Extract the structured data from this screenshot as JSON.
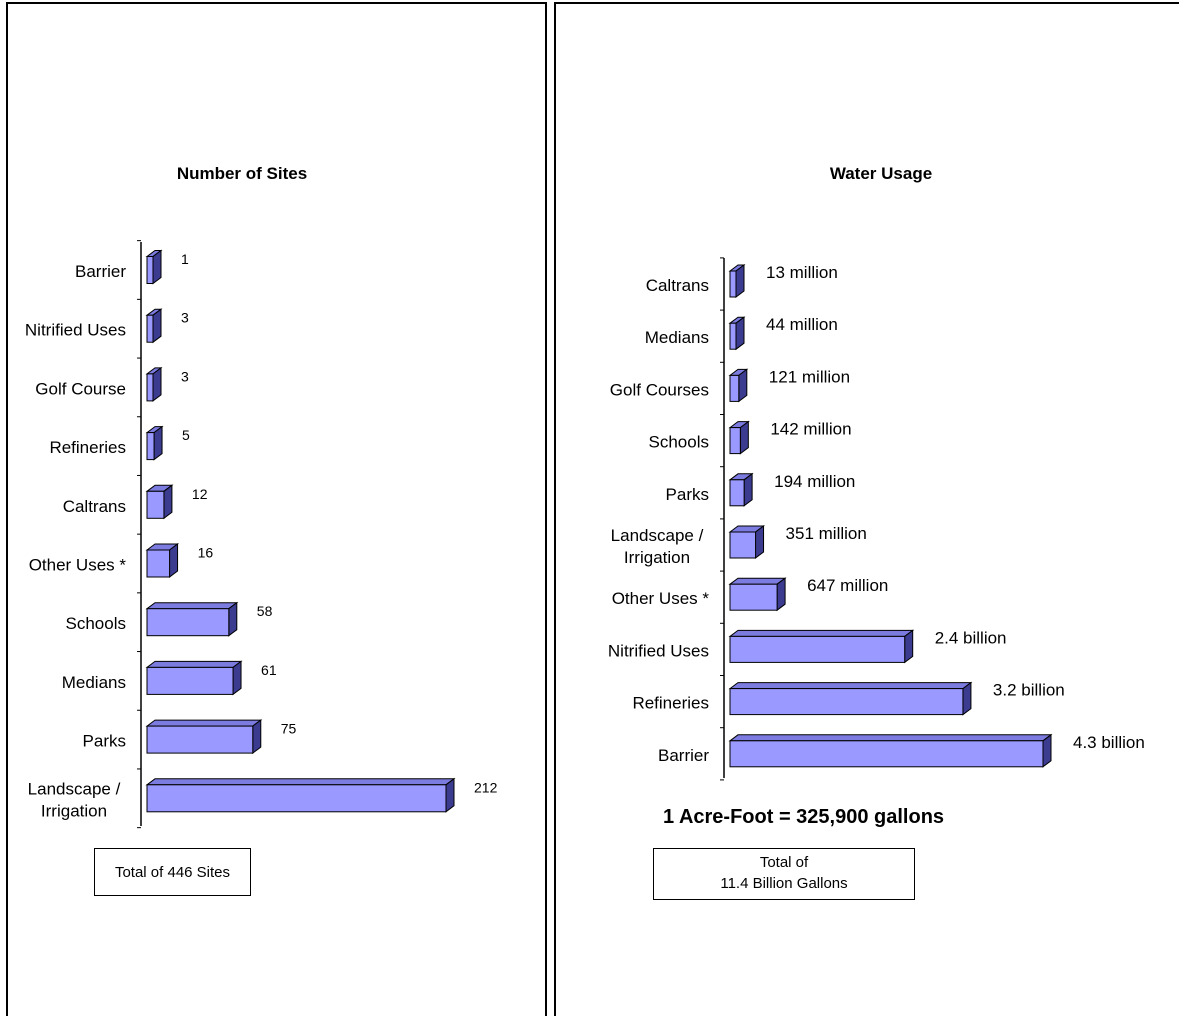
{
  "chart_data": [
    {
      "type": "bar",
      "orientation": "horizontal",
      "title": "Number of Sites",
      "categories": [
        "Barrier",
        "Nitrified Uses",
        "Golf Course",
        "Refineries",
        "Caltrans",
        "Other Uses *",
        "Schools",
        "Medians",
        "Parks",
        "Landscape / Irrigation"
      ],
      "values": [
        1,
        3,
        3,
        5,
        12,
        16,
        58,
        61,
        75,
        212
      ],
      "data_labels": [
        "1",
        "3",
        "3",
        "5",
        "12",
        "16",
        "58",
        "61",
        "75",
        "212"
      ],
      "xlabel": "",
      "ylabel": "",
      "grid": false,
      "bar_color": "#9999ff",
      "footnote": "Total of 446 Sites"
    },
    {
      "type": "bar",
      "orientation": "horizontal",
      "title": "Water Usage",
      "categories": [
        "Caltrans",
        "Medians",
        "Golf Courses",
        "Schools",
        "Parks",
        "Landscape / Irrigation",
        "Other Uses *",
        "Nitrified Uses",
        "Refineries",
        "Barrier"
      ],
      "values": [
        13000000,
        44000000,
        121000000,
        142000000,
        194000000,
        351000000,
        647000000,
        2400000000,
        3200000000,
        4300000000
      ],
      "data_labels": [
        "13 million",
        "44 million",
        "121 million",
        "142 million",
        "194 million",
        "351 million",
        "647 million",
        "2.4 billion",
        "3.2 billion",
        "4.3 billion"
      ],
      "xlabel": "",
      "ylabel": "",
      "grid": false,
      "bar_color": "#9999ff",
      "note": "1 Acre-Foot = 325,900 gallons",
      "footnote_line1": "Total of",
      "footnote_line2": "11.4 Billion Gallons"
    }
  ]
}
